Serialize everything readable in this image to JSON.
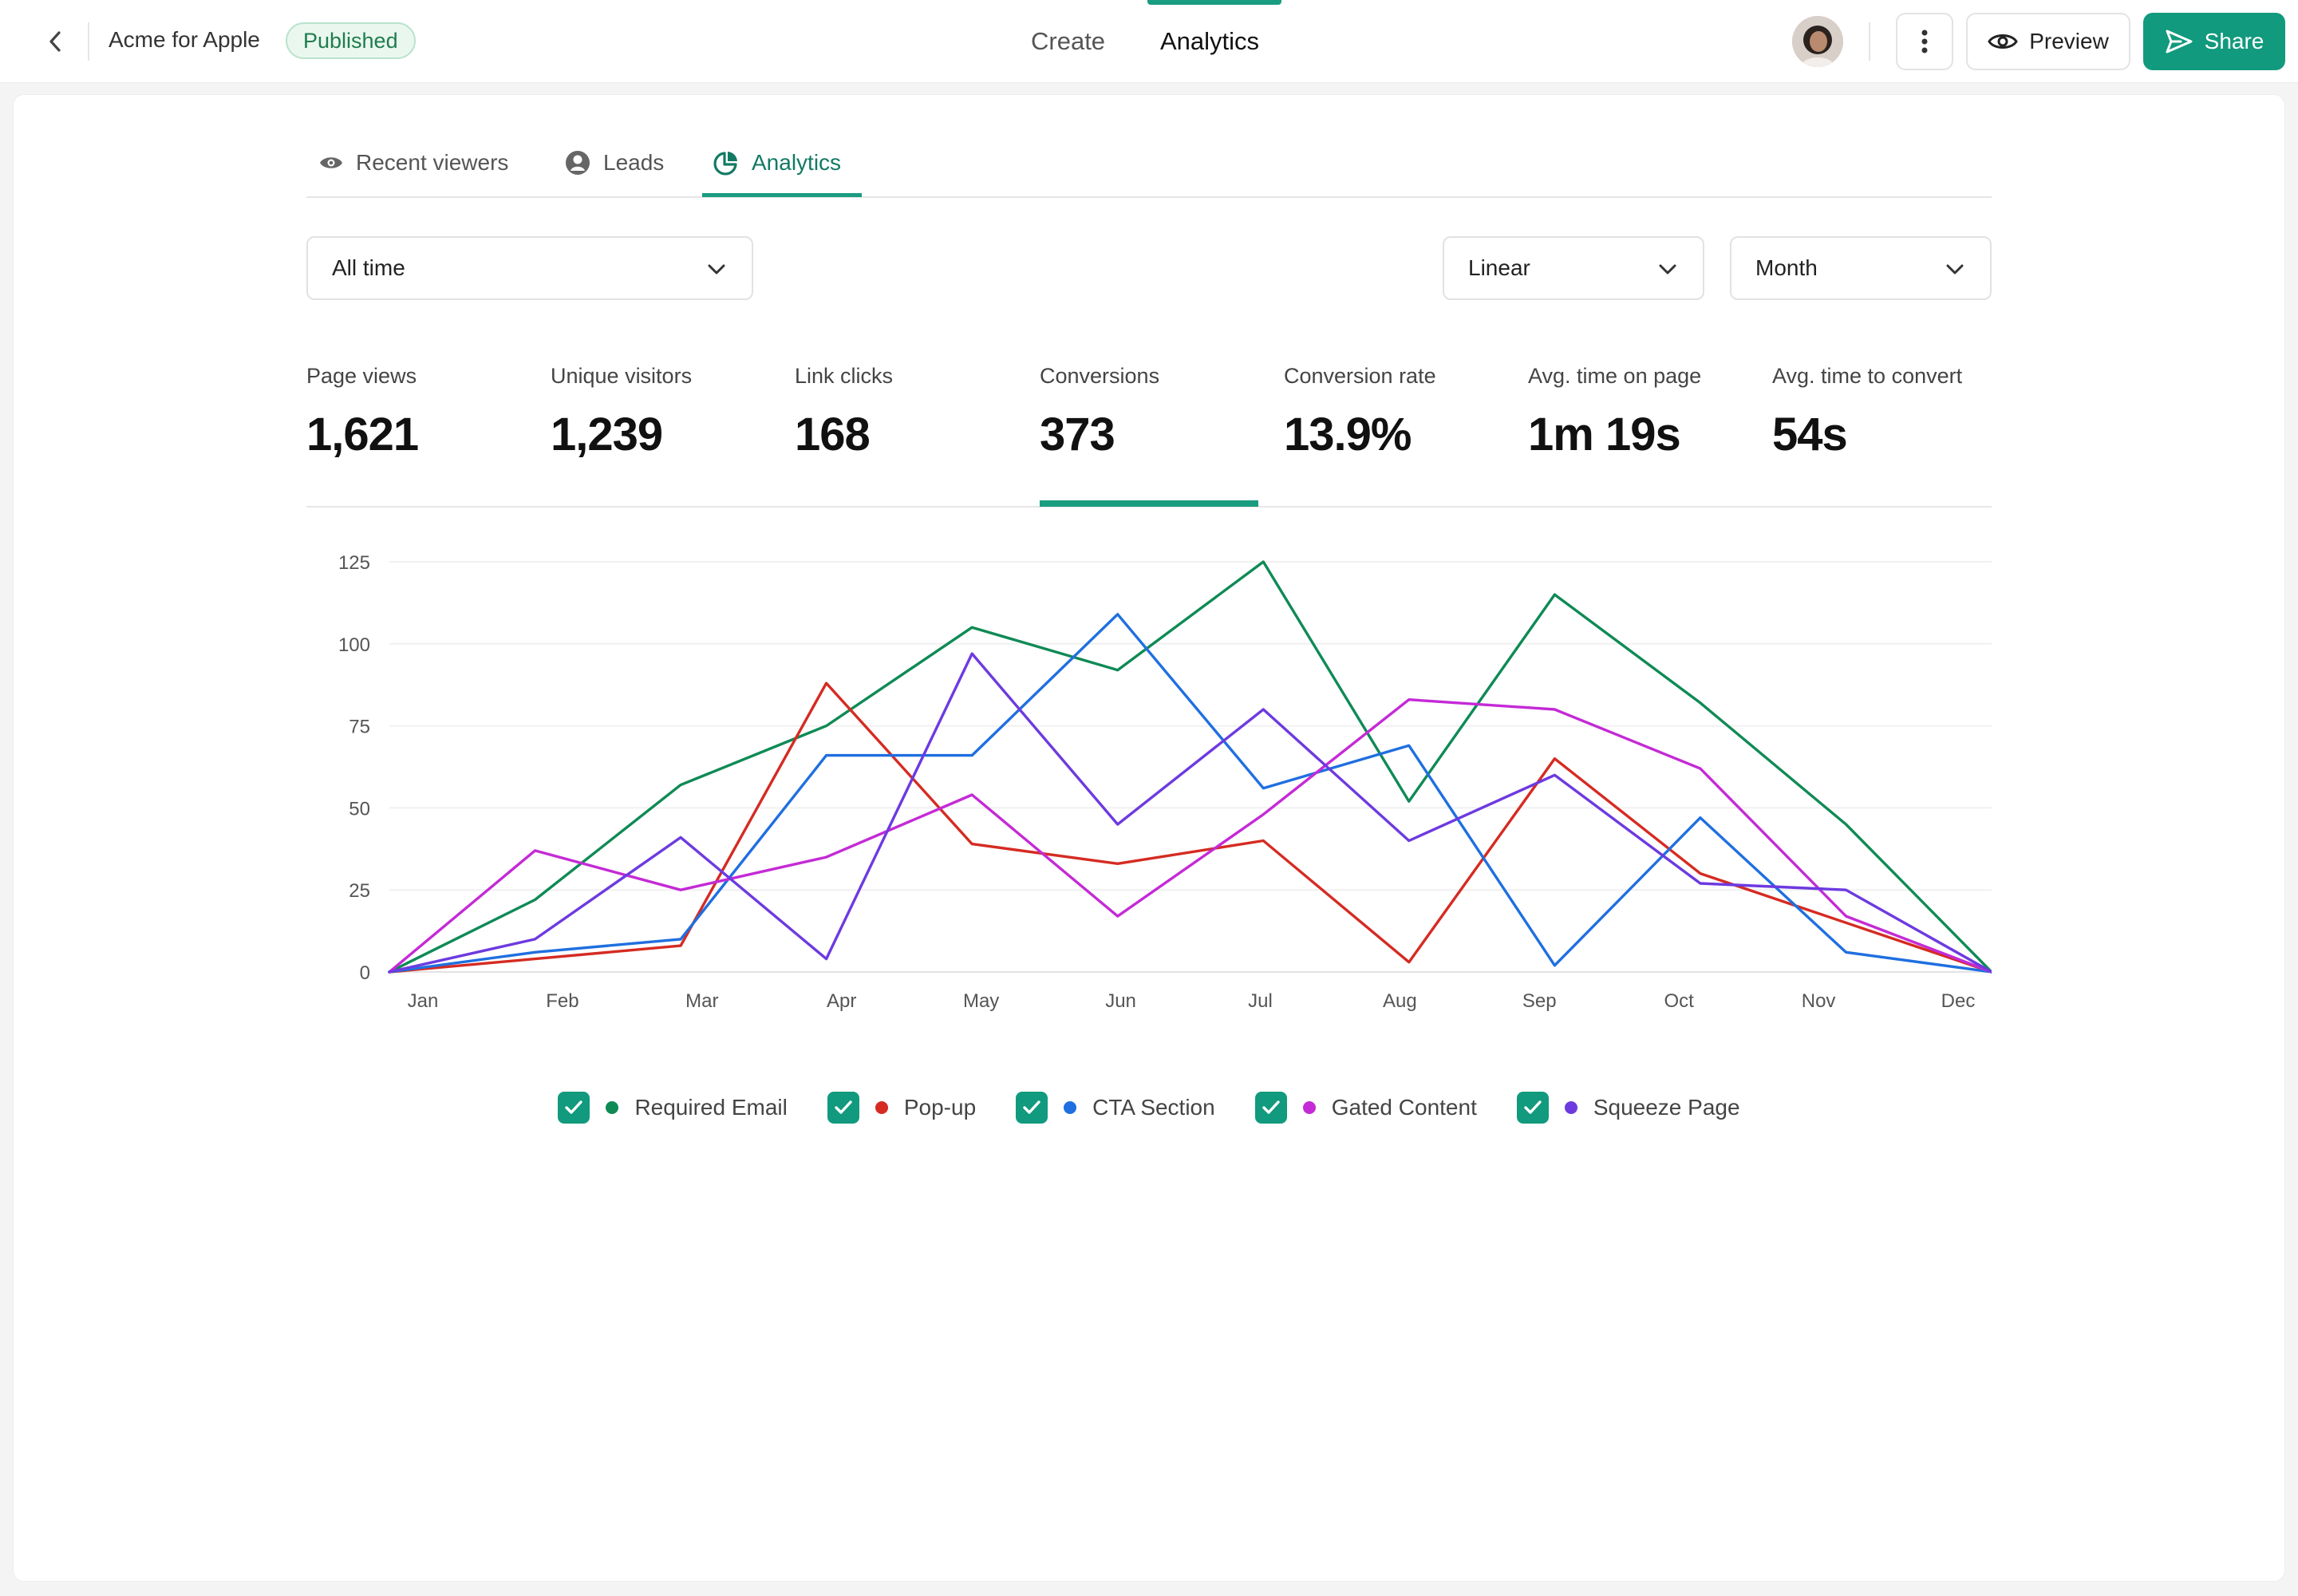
{
  "header": {
    "doc_title": "Acme for Apple",
    "status": "Published",
    "tabs": [
      "Create",
      "Analytics"
    ],
    "active_tab": "Analytics",
    "preview_label": "Preview",
    "share_label": "Share",
    "accent": "#119a7d"
  },
  "subtabs": [
    {
      "label": "Recent viewers",
      "icon": "eye-icon"
    },
    {
      "label": "Leads",
      "icon": "user-circle-icon"
    },
    {
      "label": "Analytics",
      "icon": "pie-chart-icon",
      "active": true
    }
  ],
  "filters": {
    "range": "All time",
    "scale": "Linear",
    "interval": "Month"
  },
  "stats": [
    {
      "label": "Page views",
      "value": "1,621"
    },
    {
      "label": "Unique visitors",
      "value": "1,239"
    },
    {
      "label": "Link clicks",
      "value": "168"
    },
    {
      "label": "Conversions",
      "value": "373",
      "active": true
    },
    {
      "label": "Conversion rate",
      "value": "13.9%"
    },
    {
      "label": "Avg. time on page",
      "value": "1m 19s"
    },
    {
      "label": "Avg. time to convert",
      "value": "54s"
    }
  ],
  "chart_data": {
    "type": "line",
    "categories": [
      "Jan",
      "Feb",
      "Mar",
      "Apr",
      "May",
      "Jun",
      "Jul",
      "Aug",
      "Sep",
      "Oct",
      "Nov",
      "Dec"
    ],
    "x_points": [
      "",
      "Jan",
      "Feb",
      "Mar",
      "Apr",
      "May",
      "Jun",
      "Jul",
      "Aug",
      "Sep",
      "Oct",
      "Nov",
      "Dec"
    ],
    "ylim": [
      0,
      125
    ],
    "yticks": [
      0,
      25,
      50,
      75,
      100,
      125
    ],
    "grid": true,
    "series": [
      {
        "name": "Required Email",
        "color": "#0f8a55",
        "values": [
          0,
          22,
          57,
          75,
          105,
          92,
          125,
          52,
          115,
          82,
          45,
          0
        ]
      },
      {
        "name": "Pop-up",
        "color": "#d52b22",
        "values": [
          0,
          4,
          8,
          88,
          39,
          33,
          40,
          3,
          65,
          30,
          15,
          0
        ]
      },
      {
        "name": "CTA Section",
        "color": "#1f6fe0",
        "values": [
          0,
          6,
          10,
          66,
          66,
          109,
          56,
          69,
          2,
          47,
          6,
          0
        ]
      },
      {
        "name": "Gated Content",
        "color": "#c42ad6",
        "values": [
          0,
          37,
          25,
          35,
          54,
          17,
          48,
          83,
          80,
          62,
          17,
          0
        ]
      },
      {
        "name": "Squeeze Page",
        "color": "#6d3ae0",
        "values": [
          0,
          10,
          41,
          4,
          97,
          45,
          80,
          40,
          60,
          27,
          25,
          0
        ]
      }
    ]
  }
}
